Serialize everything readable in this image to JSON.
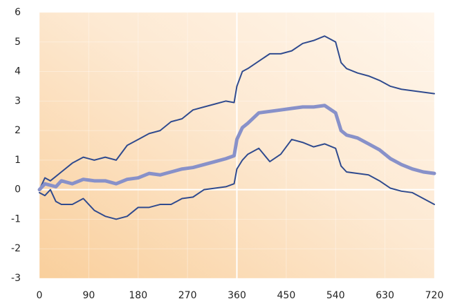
{
  "chart_data": {
    "type": "line",
    "x": [
      0,
      10,
      20,
      30,
      40,
      60,
      80,
      100,
      120,
      140,
      160,
      180,
      200,
      220,
      240,
      260,
      280,
      300,
      320,
      340,
      355,
      360,
      370,
      380,
      400,
      420,
      440,
      460,
      480,
      500,
      520,
      540,
      550,
      560,
      580,
      600,
      620,
      640,
      660,
      680,
      700,
      720
    ],
    "series": [
      {
        "color": "#2f4a8e",
        "width": 2,
        "values": [
          0,
          0.4,
          0.3,
          0.45,
          0.6,
          0.9,
          1.1,
          1.0,
          1.1,
          1.0,
          1.5,
          1.7,
          1.9,
          2.0,
          2.3,
          2.4,
          2.7,
          2.8,
          2.9,
          3.0,
          2.95,
          3.5,
          4.0,
          4.1,
          4.35,
          4.6,
          4.6,
          4.7,
          4.95,
          5.05,
          5.2,
          5.0,
          4.3,
          4.1,
          3.95,
          3.85,
          3.7,
          3.5,
          3.4,
          3.35,
          3.3,
          3.25
        ]
      },
      {
        "color": "#8891c9",
        "width": 5,
        "values": [
          0,
          0.2,
          0.15,
          0.1,
          0.3,
          0.2,
          0.35,
          0.3,
          0.3,
          0.2,
          0.35,
          0.4,
          0.55,
          0.5,
          0.6,
          0.7,
          0.75,
          0.85,
          0.95,
          1.05,
          1.15,
          1.7,
          2.1,
          2.25,
          2.6,
          2.65,
          2.7,
          2.75,
          2.8,
          2.8,
          2.85,
          2.6,
          2.0,
          1.85,
          1.75,
          1.55,
          1.35,
          1.05,
          0.85,
          0.7,
          0.6,
          0.55
        ]
      },
      {
        "color": "#2f4a8e",
        "width": 2,
        "values": [
          -0.1,
          -0.2,
          0,
          -0.4,
          -0.5,
          -0.5,
          -0.3,
          -0.7,
          -0.9,
          -1.0,
          -0.9,
          -0.6,
          -0.6,
          -0.5,
          -0.5,
          -0.3,
          -0.25,
          0,
          0.05,
          0.1,
          0.2,
          0.7,
          1.0,
          1.2,
          1.4,
          0.95,
          1.2,
          1.7,
          1.6,
          1.45,
          1.55,
          1.4,
          0.8,
          0.6,
          0.55,
          0.5,
          0.3,
          0.05,
          -0.05,
          -0.1,
          -0.3,
          -0.5
        ]
      }
    ],
    "xlim": [
      0,
      720
    ],
    "xticks": [
      0,
      90,
      180,
      270,
      360,
      450,
      540,
      630,
      720
    ],
    "ylim": [
      -3,
      6
    ],
    "yticks": [
      -3,
      -2,
      -1,
      0,
      1,
      2,
      3,
      4,
      5,
      6
    ],
    "grid": true
  }
}
